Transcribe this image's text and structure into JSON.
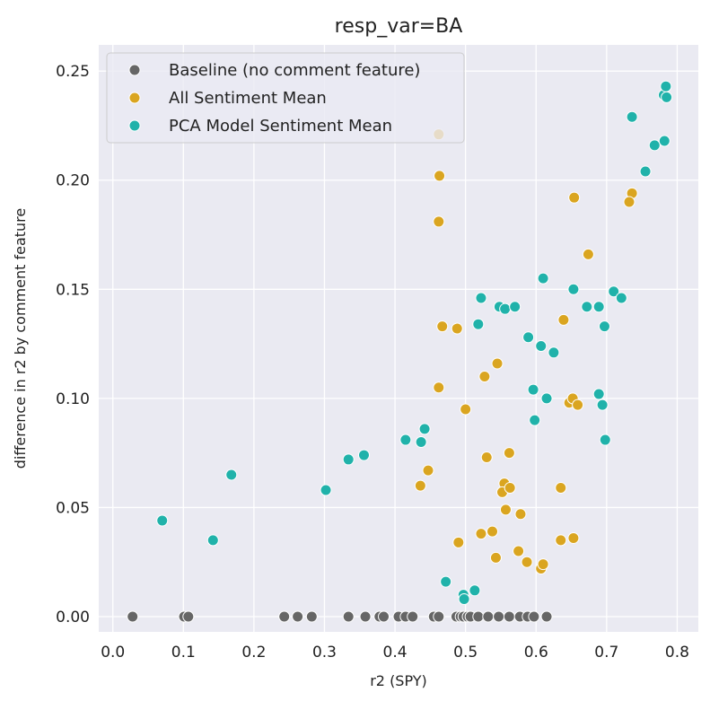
{
  "chart_data": {
    "type": "scatter",
    "title": "resp_var=BA",
    "xlabel": "r2 (SPY)",
    "ylabel": "difference in r2 by comment feature",
    "xlim": [
      -0.02,
      0.83
    ],
    "ylim": [
      -0.007,
      0.262
    ],
    "xticks": [
      "0.0",
      "0.1",
      "0.2",
      "0.3",
      "0.4",
      "0.5",
      "0.6",
      "0.7",
      "0.8"
    ],
    "yticks": [
      "0.00",
      "0.05",
      "0.10",
      "0.15",
      "0.20",
      "0.25"
    ],
    "grid": true,
    "legend_position": "top-left",
    "series": [
      {
        "name": "Baseline (no comment feature)",
        "color": "#666666",
        "points": [
          [
            0.028,
            0
          ],
          [
            0.101,
            0
          ],
          [
            0.107,
            0
          ],
          [
            0.243,
            0
          ],
          [
            0.262,
            0
          ],
          [
            0.282,
            0
          ],
          [
            0.334,
            0
          ],
          [
            0.358,
            0
          ],
          [
            0.378,
            0
          ],
          [
            0.384,
            0
          ],
          [
            0.405,
            0
          ],
          [
            0.415,
            0
          ],
          [
            0.425,
            0
          ],
          [
            0.455,
            0
          ],
          [
            0.462,
            0
          ],
          [
            0.487,
            0
          ],
          [
            0.493,
            0
          ],
          [
            0.497,
            0
          ],
          [
            0.503,
            0
          ],
          [
            0.507,
            0
          ],
          [
            0.518,
            0
          ],
          [
            0.532,
            0
          ],
          [
            0.547,
            0
          ],
          [
            0.562,
            0
          ],
          [
            0.577,
            0
          ],
          [
            0.588,
            0
          ],
          [
            0.597,
            0
          ],
          [
            0.615,
            0
          ]
        ]
      },
      {
        "name": "All Sentiment Mean",
        "color": "#DAA520",
        "points": [
          [
            0.462,
            0.221
          ],
          [
            0.463,
            0.202
          ],
          [
            0.462,
            0.181
          ],
          [
            0.467,
            0.133
          ],
          [
            0.488,
            0.132
          ],
          [
            0.462,
            0.105
          ],
          [
            0.5,
            0.095
          ],
          [
            0.545,
            0.116
          ],
          [
            0.527,
            0.11
          ],
          [
            0.562,
            0.075
          ],
          [
            0.53,
            0.073
          ],
          [
            0.447,
            0.067
          ],
          [
            0.436,
            0.06
          ],
          [
            0.555,
            0.061
          ],
          [
            0.552,
            0.057
          ],
          [
            0.563,
            0.059
          ],
          [
            0.557,
            0.049
          ],
          [
            0.578,
            0.047
          ],
          [
            0.522,
            0.038
          ],
          [
            0.538,
            0.039
          ],
          [
            0.49,
            0.034
          ],
          [
            0.575,
            0.03
          ],
          [
            0.543,
            0.027
          ],
          [
            0.587,
            0.025
          ],
          [
            0.607,
            0.022
          ],
          [
            0.61,
            0.024
          ],
          [
            0.654,
            0.192
          ],
          [
            0.736,
            0.194
          ],
          [
            0.732,
            0.19
          ],
          [
            0.674,
            0.166
          ],
          [
            0.639,
            0.136
          ],
          [
            0.647,
            0.098
          ],
          [
            0.652,
            0.1
          ],
          [
            0.659,
            0.097
          ],
          [
            0.635,
            0.059
          ],
          [
            0.635,
            0.035
          ],
          [
            0.653,
            0.036
          ]
        ]
      },
      {
        "name": "PCA Model Sentiment Mean",
        "color": "#20B2AA",
        "points": [
          [
            0.07,
            0.044
          ],
          [
            0.142,
            0.035
          ],
          [
            0.168,
            0.065
          ],
          [
            0.302,
            0.058
          ],
          [
            0.334,
            0.072
          ],
          [
            0.356,
            0.074
          ],
          [
            0.415,
            0.081
          ],
          [
            0.437,
            0.08
          ],
          [
            0.442,
            0.086
          ],
          [
            0.472,
            0.016
          ],
          [
            0.497,
            0.01
          ],
          [
            0.498,
            0.008
          ],
          [
            0.513,
            0.012
          ],
          [
            0.522,
            0.146
          ],
          [
            0.518,
            0.134
          ],
          [
            0.548,
            0.142
          ],
          [
            0.556,
            0.141
          ],
          [
            0.57,
            0.142
          ],
          [
            0.589,
            0.128
          ],
          [
            0.607,
            0.124
          ],
          [
            0.61,
            0.155
          ],
          [
            0.625,
            0.121
          ],
          [
            0.596,
            0.104
          ],
          [
            0.615,
            0.1
          ],
          [
            0.598,
            0.09
          ],
          [
            0.653,
            0.15
          ],
          [
            0.672,
            0.142
          ],
          [
            0.689,
            0.142
          ],
          [
            0.697,
            0.133
          ],
          [
            0.71,
            0.149
          ],
          [
            0.721,
            0.146
          ],
          [
            0.689,
            0.102
          ],
          [
            0.694,
            0.097
          ],
          [
            0.698,
            0.081
          ],
          [
            0.736,
            0.229
          ],
          [
            0.755,
            0.204
          ],
          [
            0.768,
            0.216
          ],
          [
            0.782,
            0.218
          ],
          [
            0.781,
            0.239
          ],
          [
            0.784,
            0.243
          ],
          [
            0.785,
            0.238
          ]
        ]
      }
    ]
  }
}
